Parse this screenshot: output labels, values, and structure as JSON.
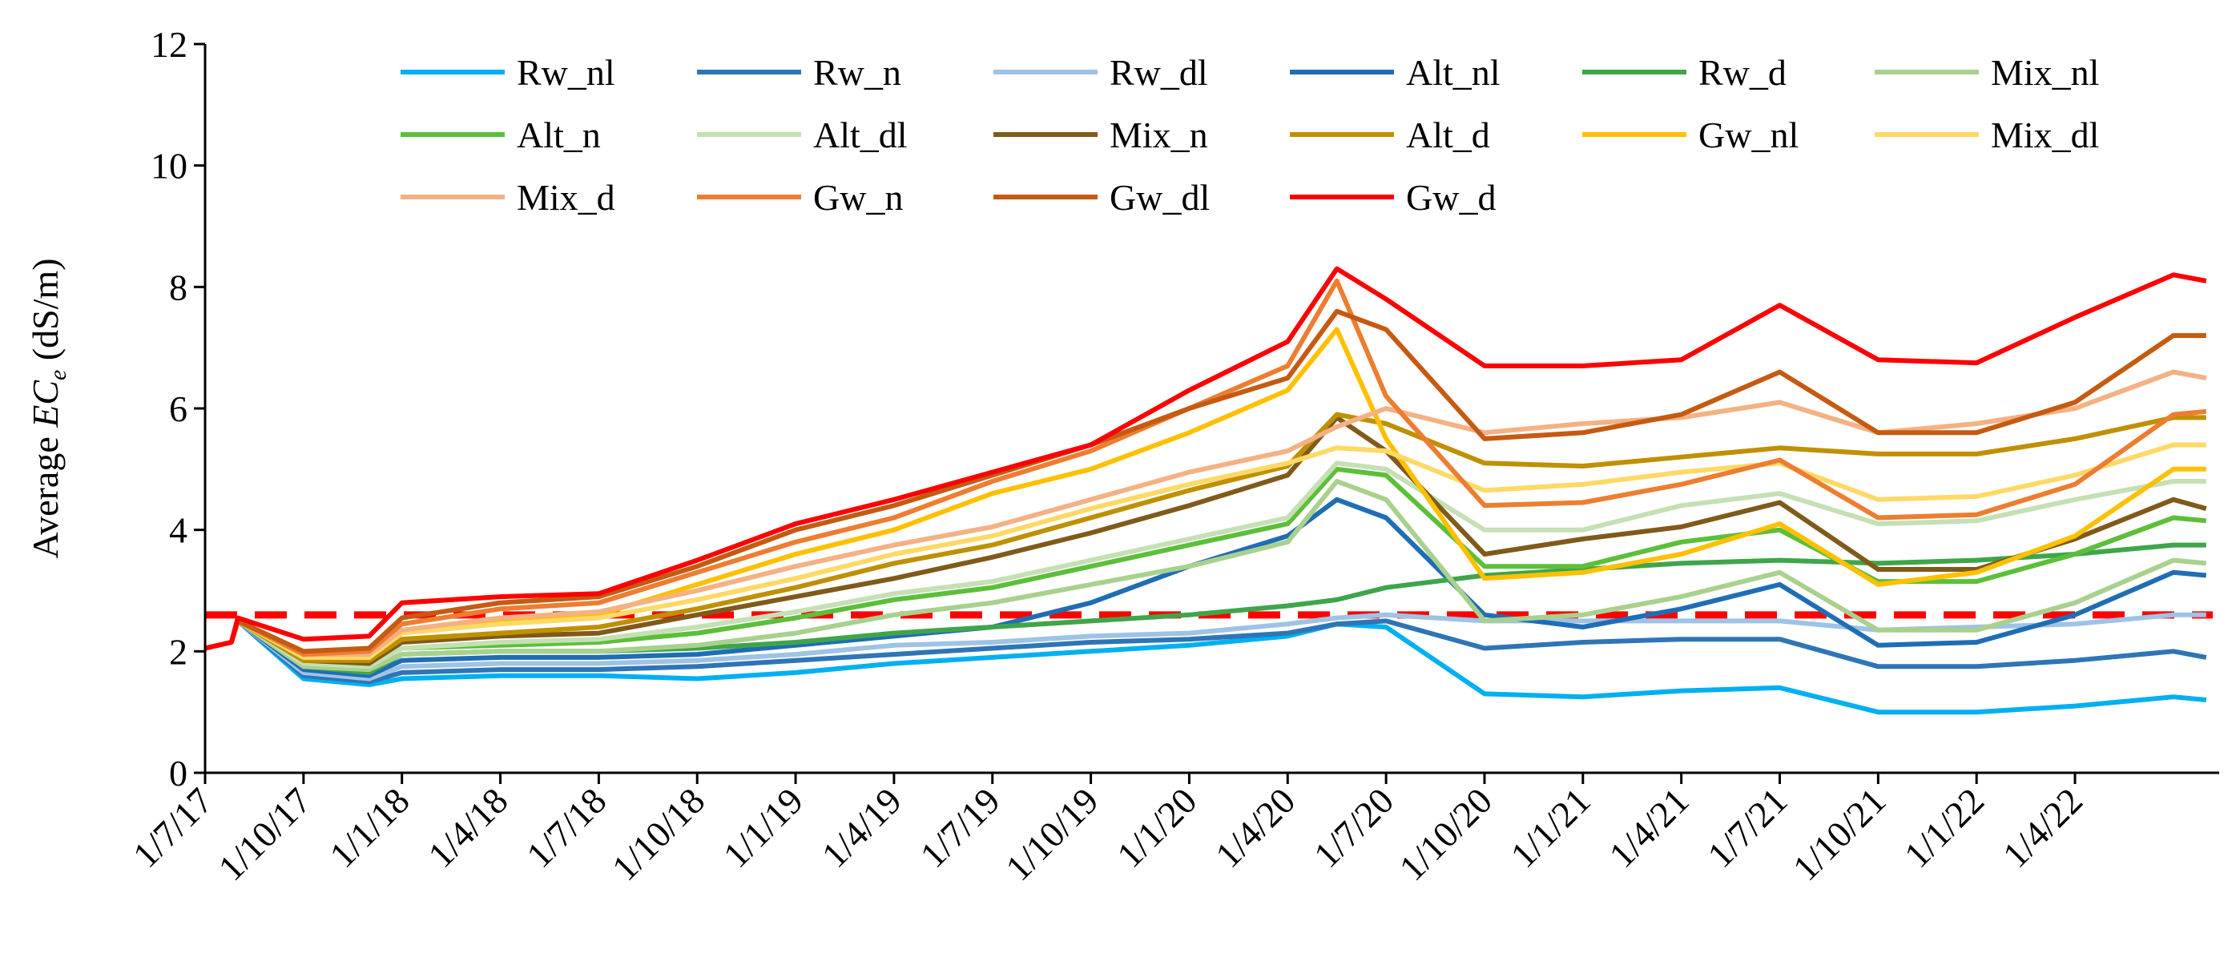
{
  "chart_data": {
    "type": "line",
    "title": "",
    "xlabel": "",
    "ylabel_prefix": "Average ",
    "ylabel_var": "EC",
    "ylabel_sub": "e",
    "ylabel_suffix": " (dS/m)",
    "ylim": [
      0,
      12
    ],
    "yticks": [
      "0",
      "2",
      "4",
      "6",
      "8",
      "10",
      "12"
    ],
    "xlim": [
      0,
      61.2
    ],
    "xticks": [
      {
        "label": "1/7/17",
        "month": 0
      },
      {
        "label": "1/10/17",
        "month": 3
      },
      {
        "label": "1/1/18",
        "month": 6
      },
      {
        "label": "1/4/18",
        "month": 9
      },
      {
        "label": "1/7/18",
        "month": 12
      },
      {
        "label": "1/10/18",
        "month": 15
      },
      {
        "label": "1/1/19",
        "month": 18
      },
      {
        "label": "1/4/19",
        "month": 21
      },
      {
        "label": "1/7/19",
        "month": 24
      },
      {
        "label": "1/10/19",
        "month": 27
      },
      {
        "label": "1/1/20",
        "month": 30
      },
      {
        "label": "1/4/20",
        "month": 33
      },
      {
        "label": "1/7/20",
        "month": 36
      },
      {
        "label": "1/10/20",
        "month": 39
      },
      {
        "label": "1/1/21",
        "month": 42
      },
      {
        "label": "1/4/21",
        "month": 45
      },
      {
        "label": "1/7/21",
        "month": 48
      },
      {
        "label": "1/10/21",
        "month": 51
      },
      {
        "label": "1/1/22",
        "month": 54
      },
      {
        "label": "1/4/22",
        "month": 57
      }
    ],
    "threshold": {
      "value": 2.6,
      "color": "#ff0000"
    },
    "legend_position": "top",
    "x_months": [
      0,
      0.8,
      1,
      3,
      5,
      6,
      9,
      12,
      15,
      18,
      21,
      24,
      27,
      30,
      33,
      34.5,
      36,
      39,
      42,
      45,
      48,
      51,
      54,
      57,
      60,
      61
    ],
    "series": [
      {
        "name": "Rw_nl",
        "color": "#00b0f0",
        "values": [
          2.05,
          2.15,
          2.5,
          1.55,
          1.45,
          1.55,
          1.6,
          1.6,
          1.55,
          1.65,
          1.8,
          1.9,
          2.0,
          2.1,
          2.25,
          2.45,
          2.4,
          1.3,
          1.25,
          1.35,
          1.4,
          1.0,
          1.0,
          1.1,
          1.25,
          1.2
        ]
      },
      {
        "name": "Rw_n",
        "color": "#2e75b6",
        "values": [
          2.05,
          2.15,
          2.5,
          1.6,
          1.5,
          1.65,
          1.7,
          1.7,
          1.75,
          1.85,
          1.95,
          2.05,
          2.15,
          2.2,
          2.3,
          2.45,
          2.5,
          2.05,
          2.15,
          2.2,
          2.2,
          1.75,
          1.75,
          1.85,
          2.0,
          1.9
        ]
      },
      {
        "name": "Rw_dl",
        "color": "#9dc3e6",
        "values": [
          2.05,
          2.15,
          2.5,
          1.65,
          1.55,
          1.75,
          1.8,
          1.8,
          1.85,
          1.95,
          2.1,
          2.15,
          2.25,
          2.3,
          2.45,
          2.55,
          2.6,
          2.5,
          2.5,
          2.5,
          2.5,
          2.35,
          2.4,
          2.45,
          2.6,
          2.6
        ]
      },
      {
        "name": "Alt_nl",
        "color": "#1f6db5",
        "values": [
          2.05,
          2.15,
          2.5,
          1.7,
          1.6,
          1.85,
          1.9,
          1.9,
          1.95,
          2.1,
          2.25,
          2.4,
          2.8,
          3.4,
          3.9,
          4.5,
          4.2,
          2.6,
          2.4,
          2.7,
          3.1,
          2.1,
          2.15,
          2.6,
          3.3,
          3.25
        ]
      },
      {
        "name": "Rw_d",
        "color": "#3fa54a",
        "values": [
          2.05,
          2.15,
          2.5,
          1.75,
          1.65,
          1.95,
          2.0,
          2.0,
          2.05,
          2.15,
          2.3,
          2.4,
          2.5,
          2.6,
          2.75,
          2.85,
          3.05,
          3.25,
          3.35,
          3.45,
          3.5,
          3.45,
          3.5,
          3.6,
          3.75,
          3.75
        ]
      },
      {
        "name": "Mix_nl",
        "color": "#a9d18e",
        "values": [
          2.05,
          2.15,
          2.5,
          1.75,
          1.7,
          1.95,
          2.0,
          2.0,
          2.1,
          2.3,
          2.6,
          2.8,
          3.1,
          3.4,
          3.8,
          4.8,
          4.5,
          2.5,
          2.6,
          2.9,
          3.3,
          2.35,
          2.35,
          2.8,
          3.5,
          3.45
        ]
      },
      {
        "name": "Alt_n",
        "color": "#5cbf3a",
        "values": [
          2.05,
          2.15,
          2.5,
          1.8,
          1.75,
          2.05,
          2.1,
          2.15,
          2.3,
          2.55,
          2.85,
          3.05,
          3.4,
          3.75,
          4.1,
          5.0,
          4.9,
          3.4,
          3.4,
          3.8,
          4.0,
          3.15,
          3.15,
          3.6,
          4.2,
          4.15
        ]
      },
      {
        "name": "Alt_dl",
        "color": "#c5e0b4",
        "values": [
          2.05,
          2.15,
          2.5,
          1.8,
          1.75,
          2.05,
          2.15,
          2.2,
          2.4,
          2.65,
          2.95,
          3.15,
          3.5,
          3.85,
          4.2,
          5.1,
          5.0,
          4.0,
          4.0,
          4.4,
          4.6,
          4.1,
          4.15,
          4.5,
          4.8,
          4.8
        ]
      },
      {
        "name": "Mix_n",
        "color": "#7f5a1a",
        "values": [
          2.05,
          2.15,
          2.5,
          1.85,
          1.8,
          2.15,
          2.25,
          2.3,
          2.6,
          2.9,
          3.2,
          3.55,
          3.95,
          4.4,
          4.9,
          5.85,
          5.3,
          3.6,
          3.85,
          4.05,
          4.45,
          3.35,
          3.35,
          3.85,
          4.5,
          4.35
        ]
      },
      {
        "name": "Alt_d",
        "color": "#bf9000",
        "values": [
          2.05,
          2.15,
          2.5,
          1.85,
          1.85,
          2.2,
          2.3,
          2.4,
          2.7,
          3.05,
          3.45,
          3.75,
          4.2,
          4.65,
          5.05,
          5.9,
          5.75,
          5.1,
          5.05,
          5.2,
          5.35,
          5.25,
          5.25,
          5.5,
          5.85,
          5.85
        ]
      },
      {
        "name": "Gw_nl",
        "color": "#ffc000",
        "values": [
          2.05,
          2.15,
          2.5,
          1.9,
          1.9,
          2.3,
          2.5,
          2.6,
          3.1,
          3.6,
          4.0,
          4.6,
          5.0,
          5.6,
          6.3,
          7.3,
          5.5,
          3.2,
          3.3,
          3.6,
          4.1,
          3.1,
          3.3,
          3.9,
          5.0,
          5.0
        ]
      },
      {
        "name": "Mix_dl",
        "color": "#ffd966",
        "values": [
          2.05,
          2.15,
          2.5,
          1.9,
          1.9,
          2.3,
          2.45,
          2.55,
          2.85,
          3.2,
          3.6,
          3.9,
          4.35,
          4.75,
          5.1,
          5.35,
          5.3,
          4.65,
          4.75,
          4.95,
          5.1,
          4.5,
          4.55,
          4.9,
          5.4,
          5.4
        ]
      },
      {
        "name": "Mix_d",
        "color": "#f4b183",
        "values": [
          2.05,
          2.15,
          2.5,
          1.95,
          1.95,
          2.35,
          2.55,
          2.65,
          3.0,
          3.4,
          3.75,
          4.05,
          4.5,
          4.95,
          5.3,
          5.7,
          6.0,
          5.6,
          5.75,
          5.85,
          6.1,
          5.6,
          5.75,
          6.0,
          6.6,
          6.5
        ]
      },
      {
        "name": "Gw_n",
        "color": "#ed7d31",
        "values": [
          2.05,
          2.15,
          2.5,
          1.95,
          2.0,
          2.45,
          2.7,
          2.8,
          3.3,
          3.8,
          4.2,
          4.8,
          5.3,
          6.0,
          6.7,
          8.1,
          6.2,
          4.4,
          4.45,
          4.75,
          5.15,
          4.2,
          4.25,
          4.75,
          5.9,
          5.95
        ]
      },
      {
        "name": "Gw_dl",
        "color": "#c55a11",
        "values": [
          2.05,
          2.15,
          2.5,
          2.0,
          2.05,
          2.55,
          2.8,
          2.9,
          3.4,
          4.0,
          4.4,
          4.9,
          5.4,
          6.0,
          6.5,
          7.6,
          7.3,
          5.5,
          5.6,
          5.9,
          6.6,
          5.6,
          5.6,
          6.1,
          7.2,
          7.2
        ]
      },
      {
        "name": "Gw_d",
        "color": "#ff0000",
        "values": [
          2.05,
          2.15,
          2.55,
          2.2,
          2.25,
          2.8,
          2.9,
          2.95,
          3.5,
          4.1,
          4.5,
          4.95,
          5.4,
          6.3,
          7.1,
          8.3,
          7.8,
          6.7,
          6.7,
          6.8,
          7.7,
          6.8,
          6.75,
          7.5,
          8.2,
          8.1
        ]
      }
    ]
  }
}
